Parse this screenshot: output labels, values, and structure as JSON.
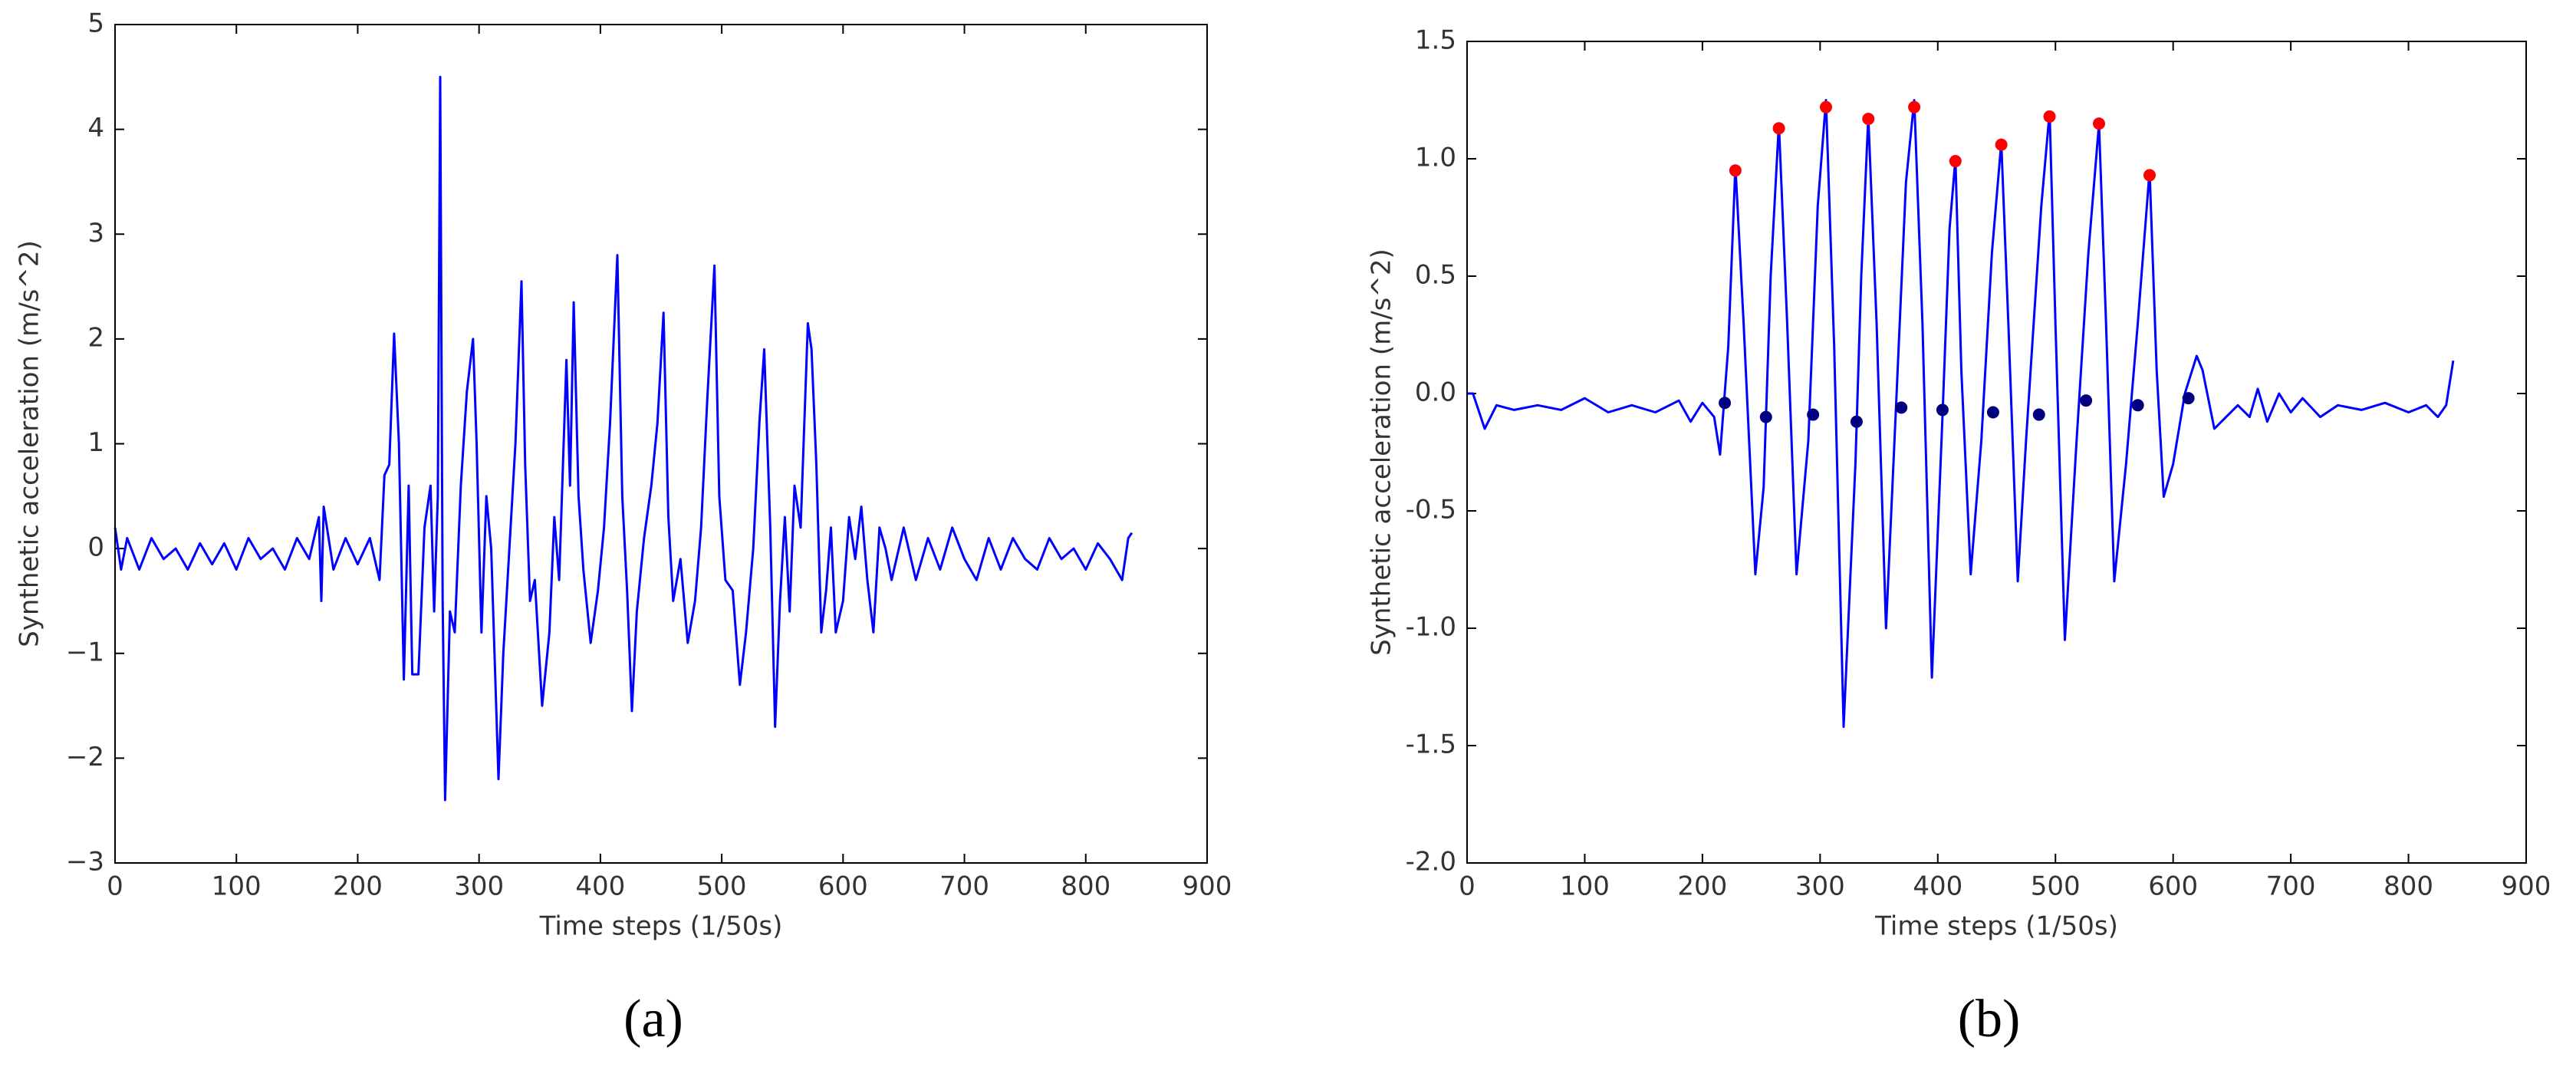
{
  "chart_data": [
    {
      "type": "line",
      "caption": "(a)",
      "xlabel": "Time steps (1/50s)",
      "ylabel": "Synthetic acceleration (m/s^2)",
      "xlim": [
        0,
        900
      ],
      "ylim": [
        -3,
        5
      ],
      "xticks": [
        0,
        100,
        200,
        300,
        400,
        500,
        600,
        700,
        800,
        900
      ],
      "yticks": [
        {
          "value": -3,
          "label": "−3"
        },
        {
          "value": -2,
          "label": "−2"
        },
        {
          "value": -1,
          "label": "−1"
        },
        0,
        1,
        2,
        3,
        4,
        5
      ],
      "series": [
        {
          "color": "#0000ff",
          "style": "line",
          "x": [
            0,
            5,
            10,
            20,
            30,
            40,
            50,
            60,
            70,
            80,
            90,
            100,
            110,
            120,
            130,
            140,
            150,
            160,
            168,
            170,
            172,
            180,
            190,
            200,
            210,
            218,
            222,
            226,
            230,
            234,
            238,
            242,
            245,
            250,
            255,
            260,
            263,
            266,
            268,
            270,
            272,
            276,
            280,
            285,
            290,
            295,
            298,
            302,
            306,
            310,
            316,
            320,
            325,
            330,
            335,
            338,
            342,
            346,
            352,
            358,
            362,
            366,
            372,
            375,
            378,
            382,
            386,
            392,
            398,
            403,
            408,
            414,
            418,
            422,
            426,
            430,
            436,
            442,
            447,
            452,
            456,
            460,
            466,
            472,
            478,
            483,
            488,
            494,
            498,
            503,
            509,
            515,
            520,
            526,
            531,
            535,
            540,
            544,
            548,
            552,
            556,
            560,
            565,
            571,
            574,
            578,
            582,
            586,
            590,
            594,
            600,
            605,
            610,
            615,
            620,
            625,
            630,
            635,
            640,
            650,
            660,
            670,
            680,
            690,
            700,
            710,
            720,
            730,
            740,
            750,
            760,
            770,
            780,
            790,
            800,
            810,
            820,
            830,
            835,
            838
          ],
          "values": [
            0.2,
            -0.2,
            0.1,
            -0.2,
            0.1,
            -0.1,
            0,
            -0.2,
            0.05,
            -0.15,
            0.05,
            -0.2,
            0.1,
            -0.1,
            0,
            -0.2,
            0.1,
            -0.1,
            0.3,
            -0.5,
            0.4,
            -0.2,
            0.1,
            -0.15,
            0.1,
            -0.3,
            0.7,
            0.8,
            2.05,
            1.0,
            -1.25,
            0.6,
            -1.2,
            -1.2,
            0.2,
            0.6,
            -0.6,
            0.5,
            4.5,
            -0.5,
            -2.4,
            -0.6,
            -0.8,
            0.6,
            1.5,
            2.0,
            1.0,
            -0.8,
            0.5,
            0.0,
            -2.2,
            -1.0,
            0.0,
            1.0,
            2.55,
            0.8,
            -0.5,
            -0.3,
            -1.5,
            -0.8,
            0.3,
            -0.3,
            1.8,
            0.6,
            2.35,
            0.5,
            -0.2,
            -0.9,
            -0.4,
            0.2,
            1.2,
            2.8,
            0.5,
            -0.4,
            -1.55,
            -0.6,
            0.1,
            0.6,
            1.2,
            2.25,
            0.3,
            -0.5,
            -0.1,
            -0.9,
            -0.5,
            0.2,
            1.4,
            2.7,
            0.5,
            -0.3,
            -0.4,
            -1.3,
            -0.8,
            0.0,
            1.2,
            1.9,
            0.2,
            -1.7,
            -0.5,
            0.3,
            -0.6,
            0.6,
            0.2,
            2.15,
            1.9,
            0.8,
            -0.8,
            -0.4,
            0.2,
            -0.8,
            -0.5,
            0.3,
            -0.1,
            0.4,
            -0.3,
            -0.8,
            0.2,
            0.0,
            -0.3,
            0.2,
            -0.3,
            0.1,
            -0.2,
            0.2,
            -0.1,
            -0.3,
            0.1,
            -0.2,
            0.1,
            -0.1,
            -0.2,
            0.1,
            -0.1,
            0,
            -0.2,
            0.05,
            -0.1,
            -0.3,
            0.1,
            0.15
          ]
        }
      ]
    },
    {
      "type": "line",
      "caption": "(b)",
      "xlabel": "Time steps (1/50s)",
      "ylabel": "Synthetic acceleration (m/s^2)",
      "xlim": [
        0,
        900
      ],
      "ylim": [
        -2,
        1.5
      ],
      "xticks": [
        0,
        100,
        200,
        300,
        400,
        500,
        600,
        700,
        800,
        900
      ],
      "yticks": [
        {
          "value": -2,
          "label": "-2.0"
        },
        {
          "value": -1.5,
          "label": "-1.5"
        },
        {
          "value": -1,
          "label": "-1.0"
        },
        {
          "value": -0.5,
          "label": "-0.5"
        },
        {
          "value": 0,
          "label": "0.0"
        },
        0.5,
        {
          "value": 1,
          "label": "1.0"
        },
        1.5
      ],
      "series": [
        {
          "color": "#0000ff",
          "style": "line",
          "x": [
            0,
            5,
            15,
            25,
            40,
            60,
            80,
            100,
            120,
            140,
            160,
            180,
            190,
            200,
            210,
            215,
            222,
            228,
            235,
            245,
            252,
            258,
            265,
            272,
            280,
            290,
            298,
            305,
            312,
            320,
            330,
            335,
            341,
            348,
            356,
            365,
            373,
            380,
            387,
            395,
            404,
            410,
            415,
            420,
            428,
            437,
            446,
            454,
            460,
            468,
            475,
            488,
            495,
            500,
            508,
            518,
            528,
            537,
            543,
            550,
            560,
            570,
            580,
            586,
            592,
            600,
            610,
            620,
            625,
            635,
            645,
            655,
            665,
            672,
            680,
            690,
            700,
            710,
            725,
            740,
            760,
            780,
            800,
            815,
            825,
            832,
            838
          ],
          "values": [
            0.0,
            0,
            -0.15,
            -0.05,
            -0.07,
            -0.05,
            -0.07,
            -0.02,
            -0.08,
            -0.05,
            -0.08,
            -0.03,
            -0.12,
            -0.04,
            -0.1,
            -0.26,
            0.2,
            0.97,
            0.3,
            -0.77,
            -0.4,
            0.5,
            1.15,
            0.3,
            -0.77,
            -0.2,
            0.8,
            1.25,
            0.2,
            -1.42,
            -0.3,
            0.5,
            1.18,
            0.3,
            -1.0,
            0.0,
            0.9,
            1.25,
            0.3,
            -1.21,
            -0.1,
            0.7,
            1.0,
            0.1,
            -0.77,
            -0.2,
            0.6,
            1.07,
            0.3,
            -0.8,
            -0.2,
            0.8,
            1.2,
            0.3,
            -1.05,
            -0.2,
            0.6,
            1.15,
            0.3,
            -0.8,
            -0.3,
            0.3,
            0.95,
            0.1,
            -0.44,
            -0.3,
            0.0,
            0.16,
            0.1,
            -0.15,
            -0.1,
            -0.05,
            -0.1,
            0.02,
            -0.12,
            0.0,
            -0.08,
            -0.02,
            -0.1,
            -0.05,
            -0.07,
            -0.04,
            -0.08,
            -0.05,
            -0.1,
            -0.05,
            0.14
          ]
        },
        {
          "color": "#ff0000",
          "style": "markers",
          "x": [
            228,
            265,
            305,
            341,
            380,
            415,
            454,
            495,
            537,
            580
          ],
          "values": [
            0.95,
            1.13,
            1.22,
            1.17,
            1.22,
            0.99,
            1.06,
            1.18,
            1.15,
            0.93
          ]
        },
        {
          "color": "#000080",
          "style": "markers",
          "x": [
            219,
            254,
            294,
            331,
            369,
            404,
            447,
            486,
            526,
            570,
            613
          ],
          "values": [
            -0.04,
            -0.1,
            -0.09,
            -0.12,
            -0.06,
            -0.07,
            -0.08,
            -0.09,
            -0.03,
            -0.05,
            -0.02
          ]
        }
      ]
    }
  ]
}
